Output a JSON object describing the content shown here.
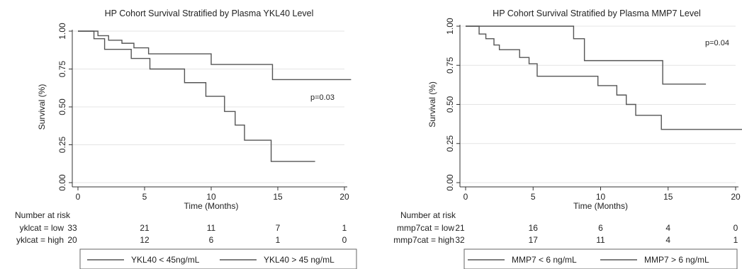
{
  "chart_data": [
    {
      "type": "line",
      "title": "HP Cohort Survival Stratified by Plasma YKL40 Level",
      "xlabel": "Time (Months)",
      "ylabel": "Survival (%)",
      "xlim": [
        0,
        20
      ],
      "ylim": [
        0,
        1
      ],
      "xticks": [
        "0",
        "5",
        "10",
        "15",
        "20"
      ],
      "yticks": [
        "0.00",
        "0.25",
        "0.50",
        "0.75",
        "1.00"
      ],
      "grid": true,
      "annotation": "p=0.03",
      "series": [
        {
          "name": "YKL40 < 45ng/mL",
          "x": [
            0,
            1.5,
            2.3,
            3.3,
            4.2,
            5.3,
            10.0,
            14.6,
            20.5
          ],
          "y": [
            1.0,
            0.97,
            0.94,
            0.92,
            0.89,
            0.85,
            0.78,
            0.68,
            0.68
          ]
        },
        {
          "name": "YKL40 > 45 ng/mL",
          "x": [
            0,
            1.2,
            2.0,
            4.0,
            5.4,
            8.0,
            9.6,
            11.0,
            11.8,
            12.5,
            14.5,
            17.8
          ],
          "y": [
            1.0,
            0.95,
            0.88,
            0.82,
            0.75,
            0.66,
            0.57,
            0.47,
            0.38,
            0.28,
            0.14,
            0.14
          ]
        }
      ],
      "risk_table": {
        "header": "Number at risk",
        "times": [
          0,
          5,
          10,
          15,
          20
        ],
        "rows": [
          {
            "label": "yklcat = low",
            "values": [
              "33",
              "21",
              "11",
              "7",
              "1"
            ]
          },
          {
            "label": "yklcat = high",
            "values": [
              "20",
              "12",
              "6",
              "1",
              "0"
            ]
          }
        ]
      },
      "legend_position": "bottom"
    },
    {
      "type": "line",
      "title": "HP Cohort Survival Stratified by Plasma MMP7 Level",
      "xlabel": "Time (Months)",
      "ylabel": "Survival (%)",
      "xlim": [
        0,
        20
      ],
      "ylim": [
        0,
        1
      ],
      "xticks": [
        "0",
        "5",
        "10",
        "15",
        "20"
      ],
      "yticks": [
        "0.00",
        "0.25",
        "0.50",
        "0.75",
        "1.00"
      ],
      "grid": true,
      "annotation": "p=0.04",
      "series": [
        {
          "name": "MMP7 < 6 ng/mL",
          "x": [
            0,
            8.0,
            8.8,
            14.6,
            17.8
          ],
          "y": [
            1.0,
            0.92,
            0.78,
            0.63,
            0.63
          ]
        },
        {
          "name": "MMP7 > 6 ng/mL",
          "x": [
            0,
            1.0,
            1.5,
            2.1,
            2.5,
            4.0,
            4.7,
            5.3,
            9.8,
            11.2,
            11.9,
            12.6,
            14.5,
            20.5
          ],
          "y": [
            1.0,
            0.95,
            0.92,
            0.88,
            0.85,
            0.8,
            0.76,
            0.68,
            0.62,
            0.56,
            0.5,
            0.43,
            0.34,
            0.34
          ]
        }
      ],
      "risk_table": {
        "header": "Number at risk",
        "times": [
          0,
          5,
          10,
          15,
          20
        ],
        "rows": [
          {
            "label": "mmp7cat = low",
            "values": [
              "21",
              "16",
              "6",
              "4",
              "0"
            ]
          },
          {
            "label": "mmp7cat = high",
            "values": [
              "32",
              "17",
              "11",
              "4",
              "1"
            ]
          }
        ]
      },
      "legend_position": "bottom"
    }
  ]
}
